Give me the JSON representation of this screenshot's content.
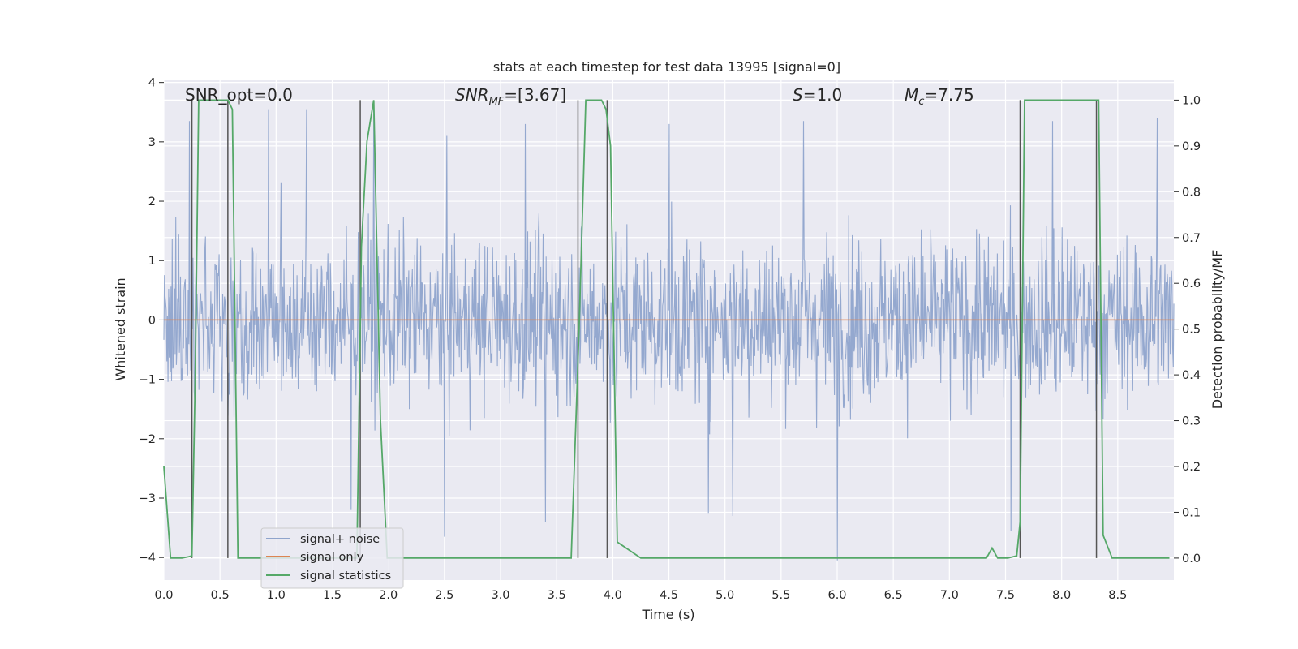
{
  "chart_data": {
    "type": "line",
    "title": "stats at each timestep for test data 13995 [signal=0]",
    "xlabel": "Time (s)",
    "ylabel": "Whitened strain",
    "ylabel_right": "Detection probability/MF",
    "xlim": [
      0.0,
      9.0
    ],
    "ylim": [
      -4.38,
      4.05
    ],
    "ylim_right": [
      -0.048,
      1.045
    ],
    "grid": true,
    "x_ticks": [
      "0.0",
      "0.5",
      "1.0",
      "1.5",
      "2.0",
      "2.5",
      "3.0",
      "3.5",
      "4.0",
      "4.5",
      "5.0",
      "5.5",
      "6.0",
      "6.5",
      "7.0",
      "7.5",
      "8.0",
      "8.5"
    ],
    "y_ticks": [
      "4",
      "3",
      "2",
      "1",
      "0",
      "−1",
      "−2",
      "−3",
      "−4"
    ],
    "y_ticks_right": [
      "1.0",
      "0.9",
      "0.8",
      "0.7",
      "0.6",
      "0.5",
      "0.4",
      "0.3",
      "0.2",
      "0.1",
      "0.0"
    ],
    "annotations": {
      "snr_opt": "SNR_opt=0.0",
      "snr_mf_sym": "SNR",
      "snr_mf_sub": "MF",
      "snr_mf_val": "=[3.67]",
      "s_sym": "S",
      "s_val": "=1.0",
      "mc_sym": "M",
      "mc_sub": "c",
      "mc_val": "=7.75"
    },
    "legend": {
      "placement": "lower-left",
      "entries": [
        "signal+ noise",
        "signal only",
        "signal statistics"
      ]
    },
    "colors": {
      "noise": "#8fa4cc",
      "signal": "#dd8452",
      "stats": "#55a868",
      "vlines": "#555555",
      "background": "#eaeaf2"
    },
    "noise_series": {
      "name": "signal+ noise",
      "x_range": [
        0.0,
        9.0
      ],
      "typical_envelope": [
        -1.6,
        1.6
      ],
      "peaks": [
        {
          "x": 0.23,
          "y": 3.35
        },
        {
          "x": 0.93,
          "y": 3.55
        },
        {
          "x": 1.27,
          "y": 3.55
        },
        {
          "x": 1.87,
          "y": 3.6
        },
        {
          "x": 2.52,
          "y": 3.1
        },
        {
          "x": 3.22,
          "y": 3.3
        },
        {
          "x": 4.5,
          "y": 3.3
        },
        {
          "x": 5.7,
          "y": 3.35
        },
        {
          "x": 7.92,
          "y": 3.35
        },
        {
          "x": 8.85,
          "y": 3.4
        }
      ],
      "troughs": [
        {
          "x": 1.67,
          "y": -3.2
        },
        {
          "x": 2.5,
          "y": -3.65
        },
        {
          "x": 3.4,
          "y": -3.4
        },
        {
          "x": 4.85,
          "y": -3.25
        },
        {
          "x": 5.07,
          "y": -3.3
        },
        {
          "x": 6.0,
          "y": -4.05
        },
        {
          "x": 7.55,
          "y": -3.55
        }
      ]
    },
    "signal_series": {
      "name": "signal only",
      "value": 0.0
    },
    "stats_series": {
      "name": "signal statistics",
      "x": [
        0.0,
        0.06,
        0.16,
        0.22,
        0.25,
        0.28,
        0.31,
        0.38,
        0.45,
        0.52,
        0.57,
        0.61,
        0.66,
        0.75,
        1.0,
        1.72,
        1.76,
        1.81,
        1.87,
        1.93,
        1.99,
        2.05,
        2.5,
        3.5,
        3.63,
        3.7,
        3.76,
        3.84,
        3.9,
        3.94,
        3.98,
        4.04,
        4.25,
        7.33,
        7.38,
        7.43,
        7.52,
        7.6,
        7.63,
        7.67,
        7.72,
        8.0,
        8.3,
        8.33,
        8.37,
        8.45,
        8.6,
        8.96
      ],
      "y": [
        0.2,
        0.0,
        0.0,
        0.003,
        0.005,
        0.4,
        1.0,
        1.0,
        1.0,
        1.0,
        1.0,
        0.98,
        0.0,
        0.0,
        0.0,
        0.0,
        0.68,
        0.91,
        1.0,
        0.3,
        0.0,
        0.0,
        0.0,
        0.0,
        0.0,
        0.5,
        1.0,
        1.0,
        1.0,
        0.98,
        0.9,
        0.035,
        0.0,
        0.0,
        0.022,
        0.0,
        0.0,
        0.005,
        0.08,
        1.0,
        1.0,
        1.0,
        1.0,
        1.0,
        0.05,
        0.0,
        0.0,
        0.0
      ]
    },
    "vertical_markers": [
      0.25,
      0.57,
      1.75,
      3.69,
      3.95,
      7.63,
      8.31
    ]
  }
}
